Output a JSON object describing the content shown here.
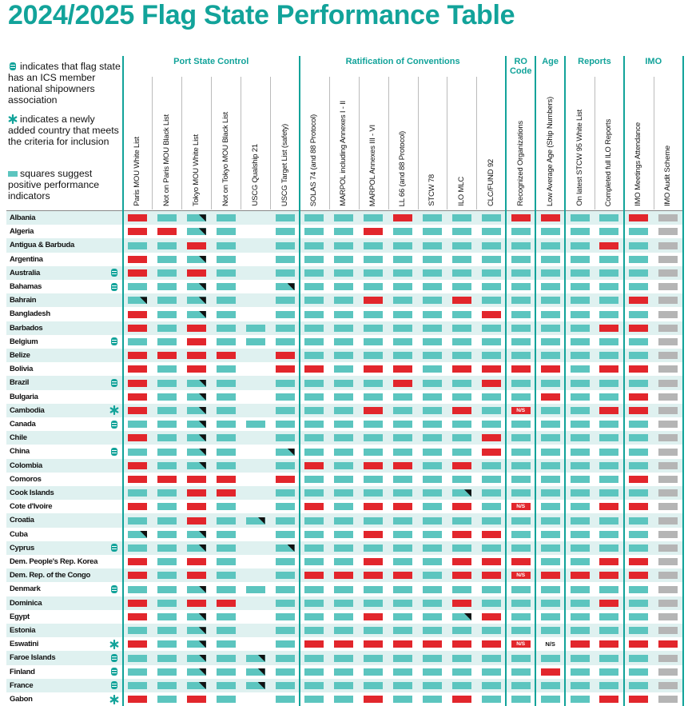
{
  "title": "2024/2025 Flag State Performance Table",
  "legend": [
    {
      "icon": "ics",
      "text": "indicates that flag state has an ICS member national shipowners association"
    },
    {
      "icon": "new",
      "text": "indicates a newly added country that meets the criteria for inclusion"
    },
    {
      "icon": "square",
      "text": "squares suggest positive performance indicators"
    }
  ],
  "groups": [
    {
      "label": "Port State Control",
      "columns": [
        "Paris MOU White List",
        "Not on Paris MOU Black List",
        "Tokyo MOU White List",
        "Not on Tokyo MOU Black List",
        "USCG Qualship 21",
        "USCG Target List (safety)"
      ]
    },
    {
      "label": "Ratification of Conventions",
      "columns": [
        "SOLAS 74 (and 88 Protocol)",
        "MARPOL including Annexes I - II",
        "MARPOL Annexes III - VI",
        "LL 66 (and 88 Protocol)",
        "STCW 78",
        "ILO MLC",
        "CLC/FUND 92"
      ]
    },
    {
      "label": "RO Code",
      "columns": [
        "Recognized Organizations"
      ]
    },
    {
      "label": "Age",
      "columns": [
        "Low Average Age (Ship Numbers)"
      ]
    },
    {
      "label": "Reports",
      "columns": [
        "On latest STCW 95 White List",
        "Completed full ILO Reports"
      ]
    },
    {
      "label": "IMO",
      "columns": [
        "IMO Meetings Attendance",
        "IMO Audit Scheme"
      ]
    }
  ],
  "rows": [
    {
      "country": "Albania",
      "cells": [
        "r",
        "g",
        "c",
        "g",
        "e",
        "g",
        "g",
        "g",
        "g",
        "r",
        "g",
        "g",
        "g",
        "r",
        "r",
        "g",
        "g",
        "r",
        "y"
      ]
    },
    {
      "country": "Algeria",
      "cells": [
        "r",
        "r",
        "c",
        "g",
        "e",
        "g",
        "g",
        "g",
        "r",
        "g",
        "g",
        "g",
        "g",
        "g",
        "g",
        "g",
        "g",
        "g",
        "y"
      ]
    },
    {
      "country": "Antigua & Barbuda",
      "cells": [
        "g",
        "g",
        "r",
        "g",
        "e",
        "g",
        "g",
        "g",
        "g",
        "g",
        "g",
        "g",
        "g",
        "g",
        "g",
        "g",
        "r",
        "g",
        "y"
      ]
    },
    {
      "country": "Argentina",
      "cells": [
        "r",
        "g",
        "c",
        "g",
        "e",
        "g",
        "g",
        "g",
        "g",
        "g",
        "g",
        "g",
        "g",
        "g",
        "g",
        "g",
        "g",
        "g",
        "y"
      ]
    },
    {
      "country": "Australia",
      "marker": "ics",
      "cells": [
        "r",
        "g",
        "r",
        "g",
        "e",
        "g",
        "g",
        "g",
        "g",
        "g",
        "g",
        "g",
        "g",
        "g",
        "g",
        "g",
        "g",
        "g",
        "y"
      ]
    },
    {
      "country": "Bahamas",
      "marker": "ics",
      "cells": [
        "g",
        "g",
        "c",
        "g",
        "e",
        "c",
        "g",
        "g",
        "g",
        "g",
        "g",
        "g",
        "g",
        "g",
        "g",
        "g",
        "g",
        "g",
        "y"
      ]
    },
    {
      "country": "Bahrain",
      "cells": [
        "c",
        "g",
        "c",
        "g",
        "e",
        "g",
        "g",
        "g",
        "r",
        "g",
        "g",
        "r",
        "g",
        "g",
        "g",
        "g",
        "g",
        "r",
        "y"
      ]
    },
    {
      "country": "Bangladesh",
      "cells": [
        "r",
        "g",
        "c",
        "g",
        "e",
        "g",
        "g",
        "g",
        "g",
        "g",
        "g",
        "g",
        "r",
        "g",
        "g",
        "g",
        "g",
        "g",
        "y"
      ]
    },
    {
      "country": "Barbados",
      "cells": [
        "r",
        "g",
        "r",
        "g",
        "g",
        "g",
        "g",
        "g",
        "g",
        "g",
        "g",
        "g",
        "g",
        "g",
        "g",
        "g",
        "r",
        "r",
        "y"
      ]
    },
    {
      "country": "Belgium",
      "marker": "ics",
      "cells": [
        "g",
        "g",
        "r",
        "g",
        "g",
        "g",
        "g",
        "g",
        "g",
        "g",
        "g",
        "g",
        "g",
        "g",
        "g",
        "g",
        "g",
        "g",
        "y"
      ]
    },
    {
      "country": "Belize",
      "cells": [
        "r",
        "r",
        "r",
        "r",
        "e",
        "r",
        "g",
        "g",
        "g",
        "g",
        "g",
        "g",
        "g",
        "g",
        "g",
        "g",
        "g",
        "g",
        "y"
      ]
    },
    {
      "country": "Bolivia",
      "cells": [
        "r",
        "g",
        "r",
        "g",
        "e",
        "r",
        "r",
        "g",
        "r",
        "r",
        "g",
        "r",
        "r",
        "r",
        "r",
        "g",
        "r",
        "r",
        "y"
      ]
    },
    {
      "country": "Brazil",
      "marker": "ics",
      "cells": [
        "r",
        "g",
        "c",
        "g",
        "e",
        "g",
        "g",
        "g",
        "g",
        "r",
        "g",
        "g",
        "r",
        "g",
        "g",
        "g",
        "g",
        "g",
        "y"
      ]
    },
    {
      "country": "Bulgaria",
      "cells": [
        "r",
        "g",
        "c",
        "g",
        "e",
        "g",
        "g",
        "g",
        "g",
        "g",
        "g",
        "g",
        "g",
        "g",
        "r",
        "g",
        "g",
        "r",
        "y"
      ]
    },
    {
      "country": "Cambodia",
      "marker": "new",
      "cells": [
        "r",
        "g",
        "c",
        "g",
        "e",
        "g",
        "g",
        "g",
        "r",
        "g",
        "g",
        "r",
        "g",
        {
          "status": "r",
          "label": "N/S"
        },
        "g",
        "g",
        "r",
        "r",
        "y"
      ]
    },
    {
      "country": "Canada",
      "marker": "ics",
      "cells": [
        "g",
        "g",
        "c",
        "g",
        "g",
        "g",
        "g",
        "g",
        "g",
        "g",
        "g",
        "g",
        "g",
        "g",
        "g",
        "g",
        "g",
        "g",
        "y"
      ]
    },
    {
      "country": "Chile",
      "cells": [
        "r",
        "g",
        "c",
        "g",
        "e",
        "g",
        "g",
        "g",
        "g",
        "g",
        "g",
        "g",
        "r",
        "g",
        "g",
        "g",
        "g",
        "g",
        "y"
      ]
    },
    {
      "country": "China",
      "marker": "ics",
      "cells": [
        "g",
        "g",
        "c",
        "g",
        "e",
        "c",
        "g",
        "g",
        "g",
        "g",
        "g",
        "g",
        "r",
        "g",
        "g",
        "g",
        "g",
        "g",
        "y"
      ]
    },
    {
      "country": "Colombia",
      "cells": [
        "r",
        "g",
        "c",
        "g",
        "e",
        "g",
        "r",
        "g",
        "r",
        "r",
        "g",
        "r",
        "g",
        "g",
        "g",
        "g",
        "g",
        "g",
        "y"
      ]
    },
    {
      "country": "Comoros",
      "cells": [
        "r",
        "r",
        "r",
        "r",
        "e",
        "r",
        "g",
        "g",
        "g",
        "g",
        "g",
        "g",
        "g",
        "g",
        "g",
        "g",
        "g",
        "r",
        "y"
      ]
    },
    {
      "country": "Cook Islands",
      "cells": [
        "g",
        "g",
        "r",
        "r",
        "e",
        "g",
        "g",
        "g",
        "g",
        "g",
        "g",
        "c",
        "g",
        "g",
        "g",
        "g",
        "g",
        "g",
        "y"
      ]
    },
    {
      "country": "Cote d'Ivoire",
      "cells": [
        "r",
        "g",
        "r",
        "g",
        "e",
        "g",
        "r",
        "g",
        "r",
        "r",
        "g",
        "r",
        "g",
        {
          "status": "r",
          "label": "N/S"
        },
        "g",
        "g",
        "r",
        "r",
        "y"
      ]
    },
    {
      "country": "Croatia",
      "cells": [
        "g",
        "g",
        "r",
        "g",
        "c",
        "g",
        "g",
        "g",
        "g",
        "g",
        "g",
        "g",
        "g",
        "g",
        "g",
        "g",
        "g",
        "g",
        "y"
      ]
    },
    {
      "country": "Cuba",
      "cells": [
        "c",
        "g",
        "c",
        "g",
        "e",
        "g",
        "g",
        "g",
        "r",
        "g",
        "g",
        "r",
        "r",
        "g",
        "g",
        "g",
        "g",
        "g",
        "y"
      ]
    },
    {
      "country": "Cyprus",
      "marker": "ics",
      "cells": [
        "g",
        "g",
        "c",
        "g",
        "e",
        "c",
        "g",
        "g",
        "g",
        "g",
        "g",
        "g",
        "g",
        "g",
        "g",
        "g",
        "g",
        "g",
        "y"
      ]
    },
    {
      "country": "Dem. People's Rep. Korea",
      "cells": [
        "r",
        "g",
        "r",
        "g",
        "e",
        "g",
        "g",
        "g",
        "r",
        "g",
        "g",
        "r",
        "r",
        "r",
        "g",
        "g",
        "r",
        "r",
        "y"
      ]
    },
    {
      "country": "Dem. Rep. of the Congo",
      "cells": [
        "r",
        "g",
        "r",
        "g",
        "e",
        "g",
        "r",
        "r",
        "r",
        "r",
        "g",
        "r",
        "r",
        {
          "status": "r",
          "label": "N/S"
        },
        "r",
        "r",
        "r",
        "r",
        "y"
      ]
    },
    {
      "country": "Denmark",
      "marker": "ics",
      "cells": [
        "g",
        "g",
        "c",
        "g",
        "g",
        "g",
        "g",
        "g",
        "g",
        "g",
        "g",
        "g",
        "g",
        "g",
        "g",
        "g",
        "g",
        "g",
        "y"
      ]
    },
    {
      "country": "Dominica",
      "cells": [
        "r",
        "g",
        "r",
        "r",
        "e",
        "g",
        "g",
        "g",
        "g",
        "g",
        "g",
        "r",
        "g",
        "g",
        "g",
        "g",
        "r",
        "g",
        "y"
      ]
    },
    {
      "country": "Egypt",
      "cells": [
        "r",
        "g",
        "c",
        "g",
        "e",
        "g",
        "g",
        "g",
        "r",
        "g",
        "g",
        "c",
        "r",
        "g",
        "g",
        "g",
        "g",
        "g",
        "y"
      ]
    },
    {
      "country": "Estonia",
      "cells": [
        "g",
        "g",
        "c",
        "g",
        "e",
        "g",
        "g",
        "g",
        "g",
        "g",
        "g",
        "g",
        "g",
        "g",
        "g",
        "g",
        "g",
        "g",
        "y"
      ]
    },
    {
      "country": "Eswatini",
      "marker": "new",
      "cells": [
        "r",
        "g",
        "c",
        "g",
        "e",
        "g",
        "r",
        "r",
        "r",
        "r",
        "r",
        "r",
        "r",
        {
          "status": "r",
          "label": "N/S"
        },
        {
          "label": "N/S"
        },
        "r",
        "r",
        "r",
        "r"
      ]
    },
    {
      "country": "Faroe Islands",
      "marker": "ics",
      "cells": [
        "g",
        "g",
        "c",
        "g",
        "c",
        "g",
        "g",
        "g",
        "g",
        "g",
        "g",
        "g",
        "g",
        "g",
        "g",
        "g",
        "g",
        "g",
        "y"
      ]
    },
    {
      "country": "Finland",
      "marker": "ics",
      "cells": [
        "g",
        "g",
        "c",
        "g",
        "c",
        "g",
        "g",
        "g",
        "g",
        "g",
        "g",
        "g",
        "g",
        "g",
        "r",
        "g",
        "g",
        "g",
        "y"
      ]
    },
    {
      "country": "France",
      "marker": "ics",
      "cells": [
        "g",
        "g",
        "c",
        "g",
        "c",
        "g",
        "g",
        "g",
        "g",
        "g",
        "g",
        "g",
        "g",
        "g",
        "g",
        "g",
        "g",
        "g",
        "y"
      ]
    },
    {
      "country": "Gabon",
      "marker": "new",
      "cells": [
        "r",
        "g",
        "r",
        "g",
        "e",
        "g",
        "g",
        "g",
        "r",
        "g",
        "g",
        "r",
        "g",
        "g",
        "g",
        "g",
        "r",
        "r",
        "y"
      ]
    }
  ]
}
